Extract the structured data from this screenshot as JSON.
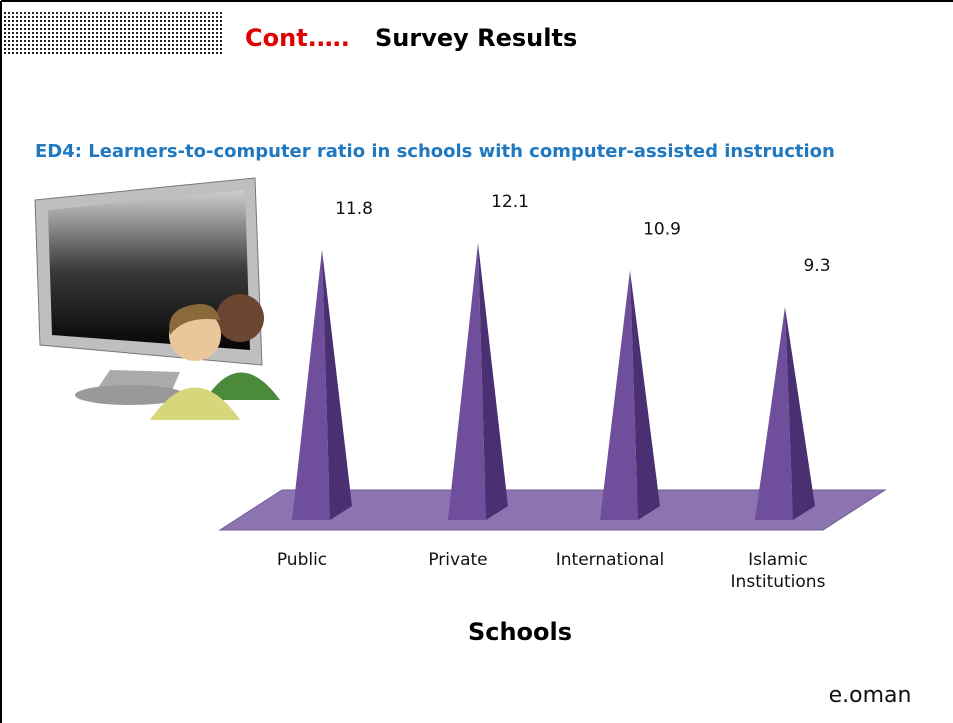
{
  "chart_data": {
    "type": "pyramid",
    "heading_prefix": "Cont.….",
    "heading": "Survey Results",
    "title": "ED4: Learners-to-computer ratio in schools with computer-assisted instruction",
    "categories": [
      "Public",
      "Private",
      "International",
      "Islamic Institutions"
    ],
    "values": [
      11.8,
      12.1,
      10.9,
      9.3
    ],
    "color": "#6f4f9c",
    "xlabel": "Schools",
    "logo": "e.oman"
  }
}
